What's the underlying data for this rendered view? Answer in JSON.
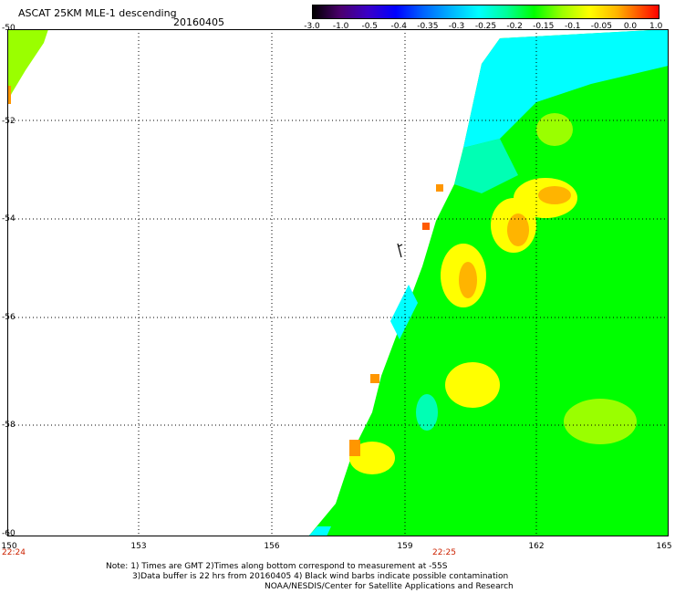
{
  "header": {
    "title": "ASCAT 25KM MLE-1 descending",
    "date": "20160405"
  },
  "colorbar": {
    "ticks": [
      "-3.0",
      "-1.0",
      "-0.5",
      "-0.4",
      "-0.35",
      "-0.3",
      "-0.25",
      "-0.2",
      "-0.15",
      "-0.1",
      "-0.05",
      "0.0",
      "1.0"
    ]
  },
  "map": {
    "lat_labels": [
      "-50",
      "-52",
      "-54",
      "-56",
      "-58",
      "-60"
    ],
    "lon_labels": [
      "150",
      "153",
      "156",
      "159",
      "162",
      "165"
    ],
    "time_start": "22:24",
    "time_mid": "22:25",
    "colors": {
      "cyan": "#00ffff",
      "teal": "#00ffb4",
      "green": "#00ff00",
      "lime": "#9aff00",
      "yellow": "#ffff00",
      "orange": "#ff9600",
      "red_orange": "#ff5a00"
    }
  },
  "notes": {
    "line1": "Note: 1) Times are GMT 2)Times along bottom correspond to measurement at -55S",
    "line2": "3)Data buffer is 22 hrs from 20160405 4) Black wind barbs indicate possible contamination",
    "line3": "NOAA/NESDIS/Center for Satellite Applications and Research"
  }
}
